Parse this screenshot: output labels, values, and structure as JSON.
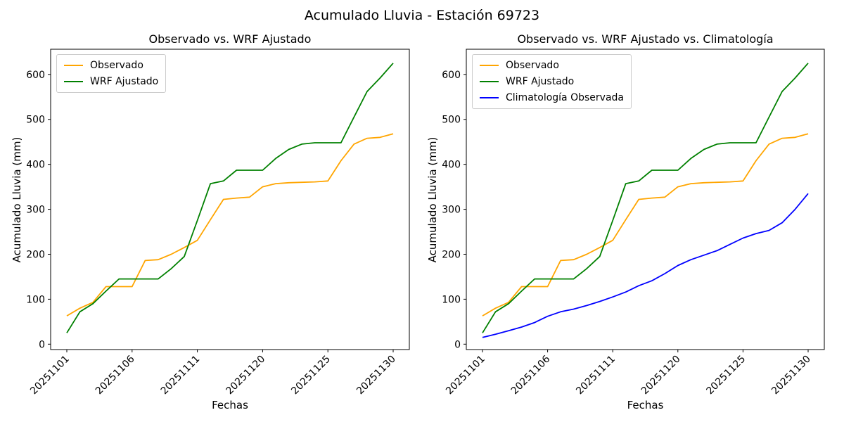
{
  "figure": {
    "title": "Acumulado Lluvia - Estación 69723",
    "background": "#ffffff",
    "text_color": "#000000",
    "axis_color": "#000000"
  },
  "chart_data": [
    {
      "type": "line",
      "title": "Observado vs. WRF Ajustado",
      "xlabel": "Fechas",
      "ylabel": "Acumulado Lluvia (mm)",
      "n_points": 26,
      "x_tick_indices": [
        0,
        5,
        10,
        15,
        20,
        25
      ],
      "x_tick_labels": [
        "20251101",
        "20251106",
        "20251111",
        "20251120",
        "20251125",
        "20251130"
      ],
      "x_tick_rotation": 45,
      "y_ticks": [
        0,
        100,
        200,
        300,
        400,
        500,
        600
      ],
      "ylim": [
        -12,
        656
      ],
      "grid": false,
      "legend_position": "upper left",
      "series": [
        {
          "name": "Observado",
          "color": "#FFA500",
          "values": [
            63,
            80,
            93,
            128,
            128,
            128,
            186,
            188,
            200,
            215,
            231,
            277,
            322,
            325,
            327,
            350,
            357,
            359,
            360,
            361,
            363,
            408,
            445,
            458,
            460,
            468
          ]
        },
        {
          "name": "WRF Ajustado",
          "color": "#008000",
          "values": [
            25,
            72,
            90,
            118,
            145,
            145,
            145,
            145,
            168,
            195,
            275,
            357,
            363,
            387,
            387,
            387,
            413,
            433,
            445,
            448,
            448,
            448,
            505,
            562,
            592,
            625
          ]
        }
      ]
    },
    {
      "type": "line",
      "title": "Observado vs. WRF Ajustado vs. Climatología",
      "xlabel": "Fechas",
      "ylabel": "Acumulado Lluvia (mm)",
      "n_points": 26,
      "x_tick_indices": [
        0,
        5,
        10,
        15,
        20,
        25
      ],
      "x_tick_labels": [
        "20251101",
        "20251106",
        "20251111",
        "20251120",
        "20251125",
        "20251130"
      ],
      "x_tick_rotation": 45,
      "y_ticks": [
        0,
        100,
        200,
        300,
        400,
        500,
        600
      ],
      "ylim": [
        -12,
        656
      ],
      "grid": false,
      "legend_position": "upper left",
      "series": [
        {
          "name": "Observado",
          "color": "#FFA500",
          "values": [
            63,
            80,
            93,
            128,
            128,
            128,
            186,
            188,
            200,
            215,
            231,
            277,
            322,
            325,
            327,
            350,
            357,
            359,
            360,
            361,
            363,
            408,
            445,
            458,
            460,
            468
          ]
        },
        {
          "name": "WRF Ajustado",
          "color": "#008000",
          "values": [
            25,
            72,
            90,
            118,
            145,
            145,
            145,
            145,
            168,
            195,
            275,
            357,
            363,
            387,
            387,
            387,
            413,
            433,
            445,
            448,
            448,
            448,
            505,
            562,
            592,
            625
          ]
        },
        {
          "name": "Climatología Observada",
          "color": "#0000FF",
          "values": [
            15,
            22,
            30,
            38,
            48,
            62,
            72,
            78,
            86,
            95,
            105,
            116,
            130,
            141,
            157,
            175,
            188,
            198,
            208,
            222,
            236,
            246,
            253,
            270,
            300,
            335
          ]
        }
      ]
    }
  ]
}
